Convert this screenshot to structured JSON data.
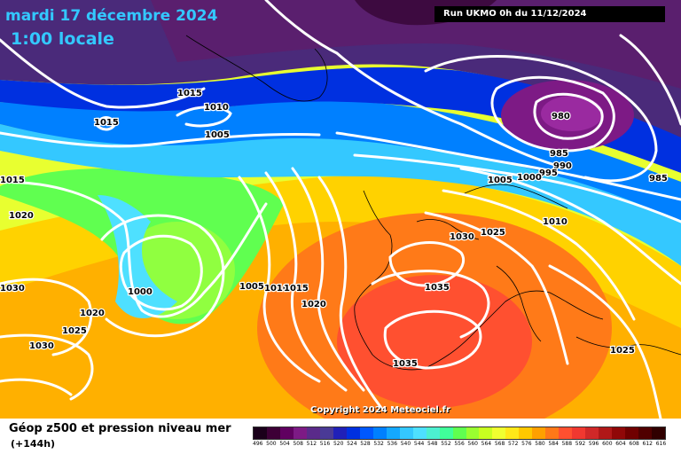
{
  "header": {
    "date_title": "mardi 17 décembre 2024",
    "local_time": "1:00 locale",
    "run_info": "Run UKMO 0h du 11/12/2024"
  },
  "copyright": "Copyright 2024 Meteociel.fr",
  "footer": {
    "title": "Géop z500 et pression niveau mer",
    "forecast_step": "(+144h)"
  },
  "scale": {
    "labels": [
      "496",
      "500",
      "504",
      "508",
      "512",
      "516",
      "520",
      "524",
      "528",
      "532",
      "536",
      "540",
      "544",
      "548",
      "552",
      "556",
      "560",
      "564",
      "568",
      "572",
      "576",
      "580",
      "584",
      "588",
      "592",
      "596",
      "600",
      "604",
      "608",
      "612",
      "616"
    ],
    "colors": [
      "#1a001a",
      "#3d0036",
      "#600060",
      "#7d1a85",
      "#5a2a8a",
      "#4a3a96",
      "#2020b8",
      "#0030e0",
      "#0058ff",
      "#0080ff",
      "#14a8ff",
      "#34c8ff",
      "#4ee0ff",
      "#4cf0d0",
      "#40ff9a",
      "#60ff50",
      "#9aff30",
      "#c8ff20",
      "#f0ff30",
      "#ffe818",
      "#ffc800",
      "#ffa000",
      "#ff7818",
      "#ff5030",
      "#f03830",
      "#d02828",
      "#b01818",
      "#900808",
      "#700000",
      "#500000",
      "#300000"
    ]
  },
  "isobars": {
    "l1015a": "1015",
    "l1010": "1010",
    "l1015b": "1015",
    "l1005a": "1005",
    "l980": "980",
    "l985a": "985",
    "l990": "990",
    "l995": "995",
    "l985b": "985",
    "l1015c": "1015",
    "l1020a": "1020",
    "l1005b": "1005",
    "l1000a": "1000",
    "l1010b": "1010",
    "l1030a": "1030",
    "l1025a": "1025",
    "l1030b": "1030",
    "l1000b": "1000",
    "l1020b": "1020",
    "l1025b": "1025",
    "l1030c": "1030",
    "l1005c": "1005",
    "l1010c": "1010",
    "l1015d": "1015",
    "l1020c": "1020",
    "l1035a": "1035",
    "l1035b": "1035",
    "l1025c": "1025"
  }
}
